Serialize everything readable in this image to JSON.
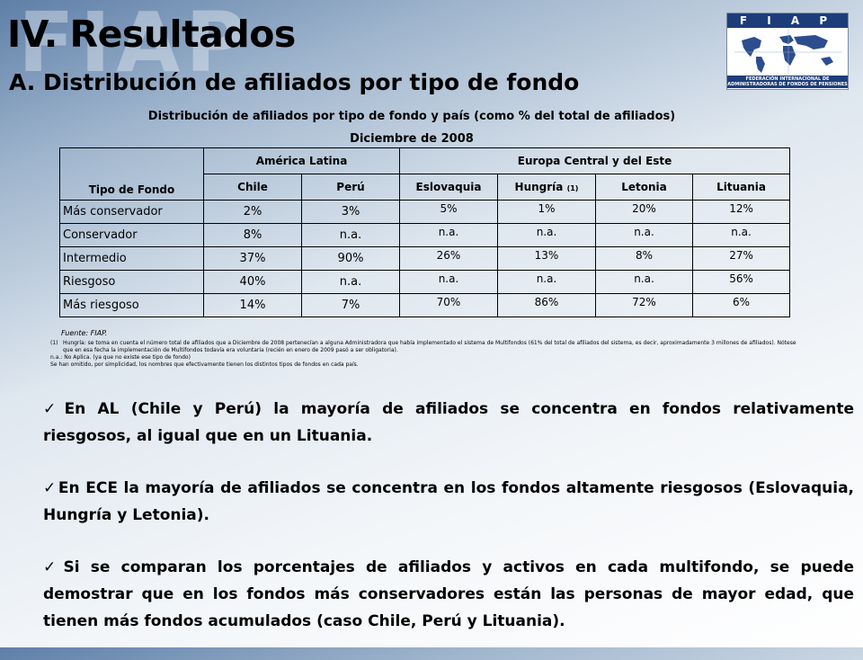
{
  "header": {
    "watermark": "FIAP",
    "title": "IV. Resultados",
    "subtitle": "A. Distribución de afiliados por tipo de fondo"
  },
  "logo": {
    "band_text": "F I A P",
    "caption": "FEDERACIÓN INTERNACIONAL DE ADMINISTRADORAS DE FONDOS DE PENSIONES",
    "brand_color": "#1d3d7a"
  },
  "table": {
    "title_line1": "Distribución de afiliados por tipo de fondo y país (como % del total de afiliados)",
    "title_line2": "Diciembre de 2008",
    "row_header": "Tipo de Fondo",
    "group_latam": "América Latina",
    "group_ece": "Europa Central y del Este",
    "countries": [
      "Chile",
      "Perú",
      "Eslovaquia",
      "Hungría",
      "Letonia",
      "Lituania"
    ],
    "hungria_note": "(1)",
    "rows": [
      {
        "label": "Más conservador",
        "values": [
          "2%",
          "3%",
          "5%",
          "1%",
          "20%",
          "12%"
        ]
      },
      {
        "label": "Conservador",
        "values": [
          "8%",
          "n.a.",
          "n.a.",
          "n.a.",
          "n.a.",
          "n.a."
        ]
      },
      {
        "label": "Intermedio",
        "values": [
          "37%",
          "90%",
          "26%",
          "13%",
          "8%",
          "27%"
        ]
      },
      {
        "label": "Riesgoso",
        "values": [
          "40%",
          "n.a.",
          "n.a.",
          "n.a.",
          "n.a.",
          "56%"
        ]
      },
      {
        "label": "Más riesgoso",
        "values": [
          "14%",
          "7%",
          "70%",
          "86%",
          "72%",
          "6%"
        ]
      }
    ]
  },
  "notes": {
    "source": "Fuente: FIAP.",
    "footnote_num": "(1)",
    "footnote_text": "Hungría: se toma en cuenta el número total de afiliados que a Diciembre de 2008 pertenecían a alguna Administradora que había implementado el sistema de Multifondos (61% del total de afiliados del sistema, es decir, aproximadamente 3 millones de afiliados). Nótese que en esa fecha la implementación de Multifondos todavía era voluntaria (recién en enero de 2009 pasó a ser obligatoria).",
    "na_note": "n.a.: No Aplica. (ya que no existe ese tipo de fondo)",
    "omission_note": "Se han omitido, por simplicidad, los nombres que efectivamente tienen los distintos tipos de fondos en cada país."
  },
  "bullets": [
    "En AL (Chile y Perú) la mayoría de afiliados se concentra en fondos relativamente riesgosos, al igual que en un Lituania.",
    "En ECE la mayoría de afiliados se concentra en los fondos altamente riesgosos (Eslovaquia, Hungría y Letonia).",
    "Si se comparan los porcentajes de afiliados y activos en cada multifondo, se puede demostrar que en los fondos más conservadores están las personas de mayor edad, que tienen más fondos acumulados (caso Chile, Perú y Lituania)."
  ],
  "check_glyph": "✓"
}
